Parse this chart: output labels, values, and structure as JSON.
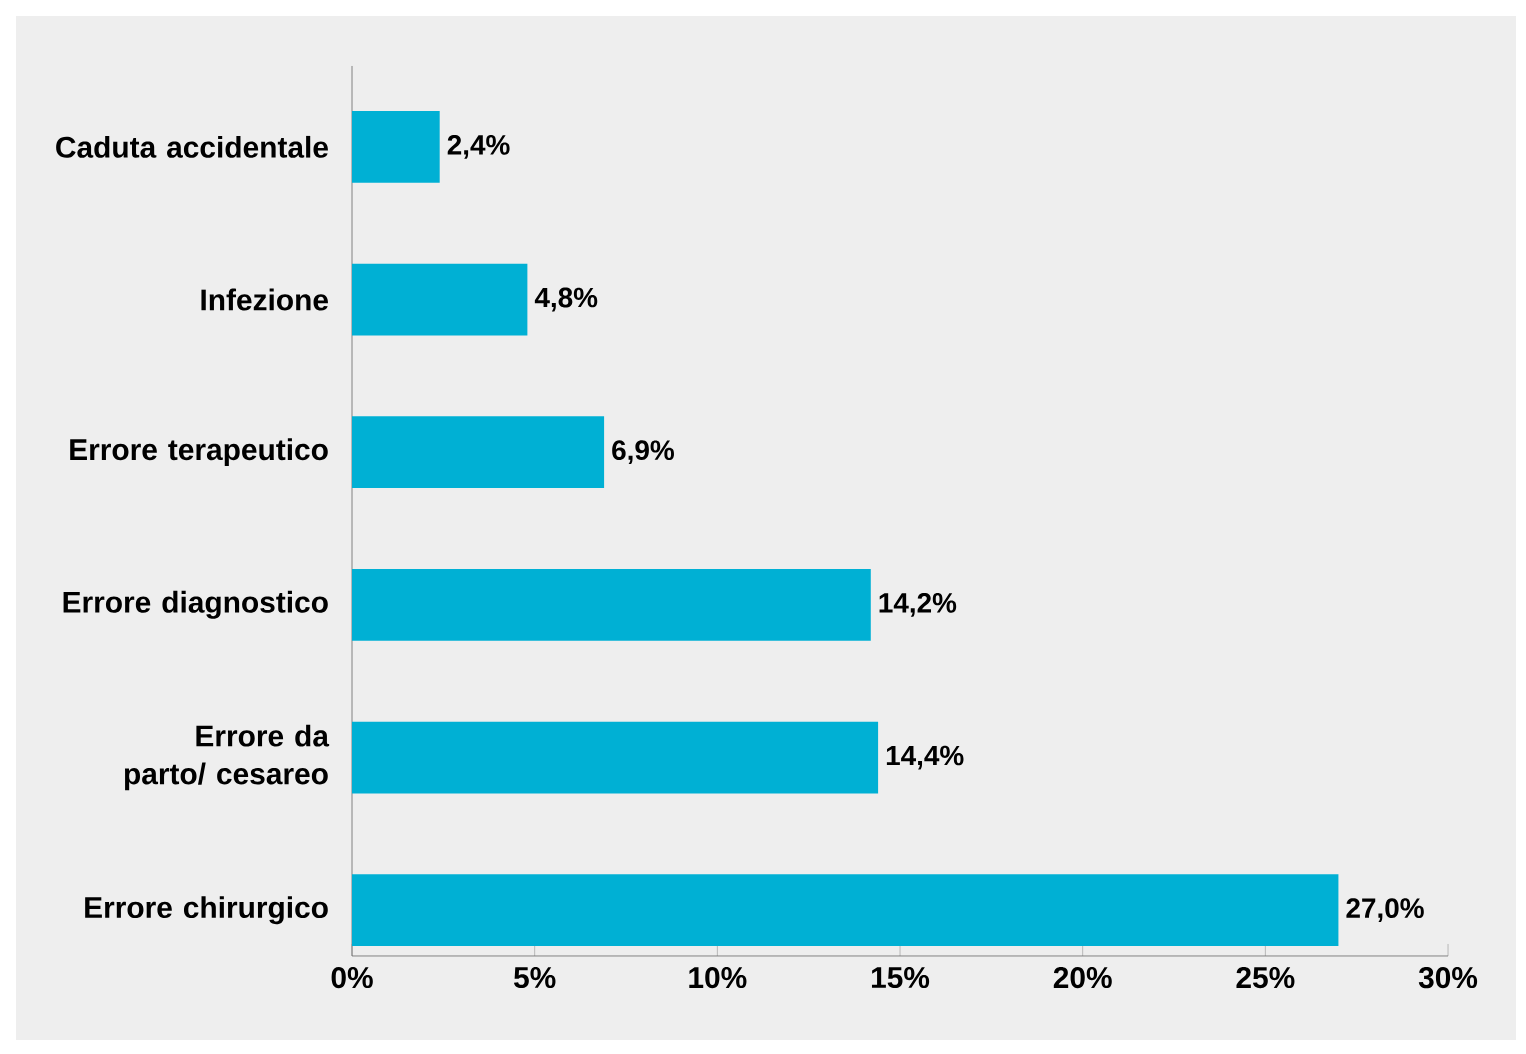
{
  "chart_data": {
    "type": "bar",
    "orientation": "horizontal",
    "categories": [
      "Caduta accidentale",
      "Infezione",
      "Errore terapeutico",
      "Errore diagnostico",
      "Errore da parto/ cesareo",
      "Errore chirurgico"
    ],
    "values": [
      2.4,
      4.8,
      6.9,
      14.2,
      14.4,
      27.0
    ],
    "value_labels": [
      "2,4%",
      "4,8%",
      "6,9%",
      "14,2%",
      "14,4%",
      "27,0%"
    ],
    "color": "#00b0d4",
    "xlim": [
      0,
      30
    ],
    "xticks": [
      {
        "value": 0,
        "label": "0%"
      },
      {
        "value": 5,
        "label": "5%"
      },
      {
        "value": 10,
        "label": "10%"
      },
      {
        "value": 15,
        "label": "15%"
      },
      {
        "value": 20,
        "label": "20%"
      },
      {
        "value": 25,
        "label": "25%"
      },
      {
        "value": 30,
        "label": "30%"
      }
    ],
    "grid": false
  }
}
